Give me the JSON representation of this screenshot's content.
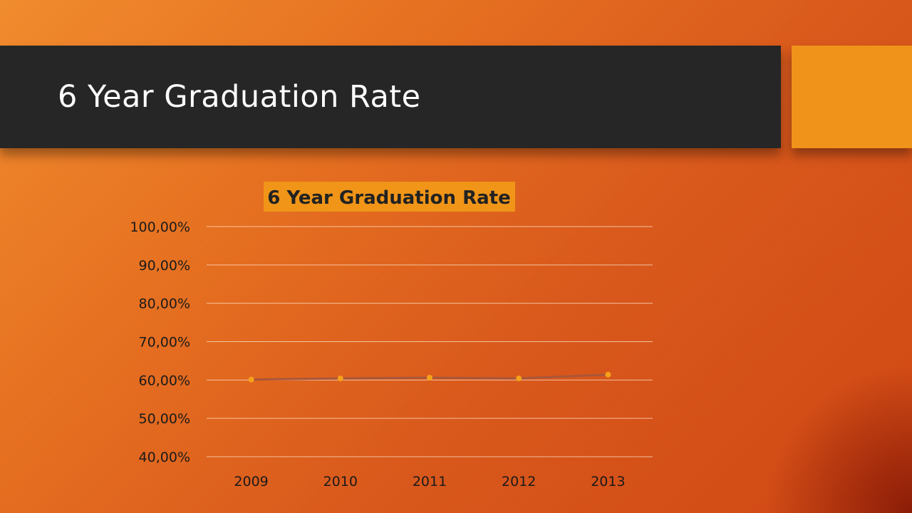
{
  "slide": {
    "title": "6 Year Graduation Rate"
  },
  "colors": {
    "title_bar": "#262626",
    "accent": "#f0931a",
    "line": "#a9563a",
    "marker": "#f5a21a"
  },
  "chart_data": {
    "type": "line",
    "title": "6 Year Graduation Rate",
    "xlabel": "",
    "ylabel": "",
    "categories": [
      "2009",
      "2010",
      "2011",
      "2012",
      "2013"
    ],
    "series": [
      {
        "values": [
          60.1,
          60.4,
          60.6,
          60.4,
          61.4
        ]
      }
    ],
    "ylim": [
      40,
      100
    ],
    "yticks": [
      40,
      50,
      60,
      70,
      80,
      90,
      100
    ],
    "ytick_labels": [
      "40,00%",
      "50,00%",
      "60,00%",
      "70,00%",
      "80,00%",
      "90,00%",
      "100,00%"
    ],
    "grid": true,
    "legend": "none"
  }
}
